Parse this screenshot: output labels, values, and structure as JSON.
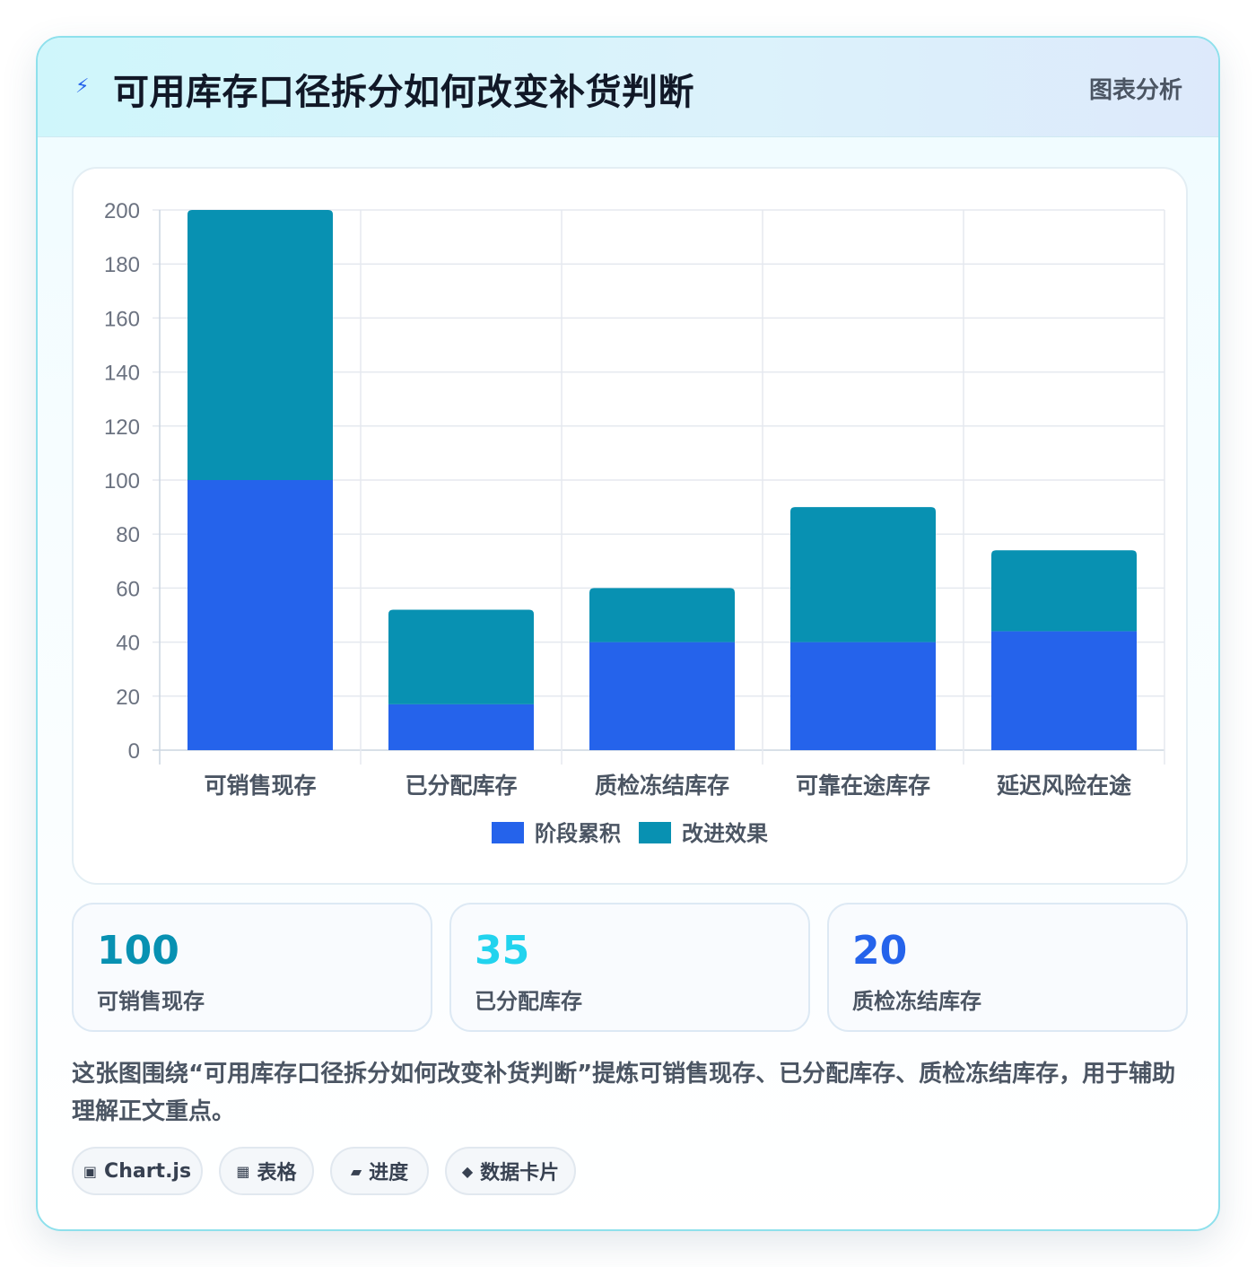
{
  "header": {
    "title": "可用库存口径拆分如何改变补货判断",
    "tag": "图表分析"
  },
  "chart_data": {
    "type": "bar",
    "stacked": true,
    "categories": [
      "可销售现存",
      "已分配库存",
      "质检冻结库存",
      "可靠在途库存",
      "延迟风险在途"
    ],
    "series": [
      {
        "name": "阶段累积",
        "color": "#2563eb",
        "values": [
          100,
          17,
          40,
          40,
          44
        ]
      },
      {
        "name": "改进效果",
        "color": "#0891b2",
        "values": [
          100,
          35,
          20,
          50,
          30
        ]
      }
    ],
    "ylim": [
      0,
      200
    ],
    "yticks": [
      0,
      20,
      40,
      60,
      80,
      100,
      120,
      140,
      160,
      180,
      200
    ],
    "grid": true,
    "legend": "bottom"
  },
  "stats": [
    {
      "value": "100",
      "label": "可销售现存",
      "color": "#0891b2"
    },
    {
      "value": "35",
      "label": "已分配库存",
      "color": "#22d3ee"
    },
    {
      "value": "20",
      "label": "质检冻结库存",
      "color": "#2563eb"
    }
  ],
  "description": "这张图围绕“可用库存口径拆分如何改变补货判断”提炼可销售现存、已分配库存、质检冻结库存，用于辅助理解正文重点。",
  "pills": [
    {
      "icon": "▣",
      "label": "Chart.js"
    },
    {
      "icon": "▦",
      "label": "表格"
    },
    {
      "icon": "▰",
      "label": "进度"
    },
    {
      "icon": "◆",
      "label": "数据卡片"
    }
  ]
}
